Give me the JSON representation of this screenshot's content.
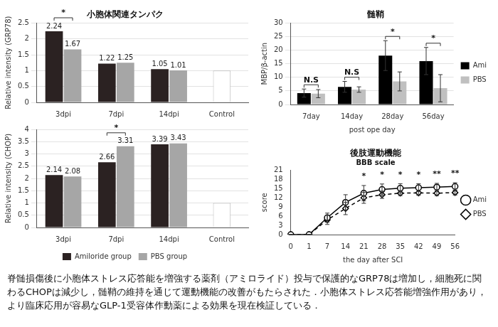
{
  "chart_data": [
    {
      "type": "bar",
      "title": "小胞体関連タンパク",
      "y_label": "Relative intensity (GRP78)",
      "categories": [
        "3dpi",
        "7dpi",
        "14dpi",
        "Control"
      ],
      "series": [
        {
          "name": "Amiloride group",
          "color": "#2b2222",
          "values": [
            2.24,
            1.22,
            1.05,
            null
          ]
        },
        {
          "name": "PBS group",
          "color": "#a6a6a6",
          "values": [
            1.67,
            1.25,
            1.01,
            null
          ]
        }
      ],
      "control": {
        "category": "Control",
        "value": 1,
        "color": "#ffffff"
      },
      "significance": [
        {
          "category": "3dpi",
          "label": "*"
        }
      ],
      "ylim": [
        0,
        2.5
      ],
      "yticks": [
        0,
        0.5,
        1,
        1.5,
        2,
        2.5
      ],
      "grid": true,
      "data_labels": true
    },
    {
      "type": "bar",
      "y_label": "Relative intensity (CHOP)",
      "categories": [
        "3dpi",
        "7dpi",
        "14dpi",
        "Control"
      ],
      "series": [
        {
          "name": "Amiloride group",
          "color": "#2b2222",
          "values": [
            2.14,
            2.66,
            3.39,
            null
          ]
        },
        {
          "name": "PBS group",
          "color": "#a6a6a6",
          "values": [
            2.08,
            3.31,
            3.43,
            null
          ]
        }
      ],
      "control": {
        "category": "Control",
        "value": 1,
        "color": "#ffffff"
      },
      "significance": [
        {
          "category": "7dpi",
          "label": "*"
        }
      ],
      "ylim": [
        0,
        4
      ],
      "yticks": [
        0,
        0.5,
        1,
        1.5,
        2,
        2.5,
        3,
        3.5,
        4
      ],
      "grid": true,
      "data_labels": true,
      "legend": "bottom"
    },
    {
      "type": "bar",
      "title": "髄鞘",
      "y_label": "MBP/β-actin",
      "x_label": "post ope day",
      "categories": [
        "7day",
        "14day",
        "28day",
        "56day"
      ],
      "series": [
        {
          "name": "Ami",
          "color": "#000000",
          "values": [
            4.2,
            6.5,
            18,
            16
          ],
          "errors": [
            1.5,
            2,
            5.5,
            5
          ]
        },
        {
          "name": "PBS",
          "color": "#c0c0c0",
          "values": [
            4,
            5.5,
            8.5,
            6
          ],
          "errors": [
            1.5,
            1,
            3.5,
            5
          ]
        }
      ],
      "significance": [
        {
          "category": "7day",
          "label": "N.S"
        },
        {
          "category": "14day",
          "label": "N.S"
        },
        {
          "category": "28day",
          "label": "*"
        },
        {
          "category": "56day",
          "label": "*"
        }
      ],
      "ylim": [
        0,
        30
      ],
      "yticks": [
        0,
        5,
        10,
        15,
        20,
        25,
        30
      ],
      "grid": true,
      "legend": "right"
    },
    {
      "type": "line",
      "title": "後肢運動機能",
      "subtitle": "BBB scale",
      "y_label": "score",
      "x_label": "the day after SCI",
      "categories": [
        "0",
        "1",
        "7",
        "14",
        "21",
        "28",
        "35",
        "42",
        "49",
        "56"
      ],
      "series": [
        {
          "name": "Ami",
          "color": "#000000",
          "marker": "circle",
          "line_style": "solid",
          "values": [
            0,
            0,
            5.5,
            10.5,
            13.5,
            14.7,
            15.1,
            15.3,
            15.5,
            15.7
          ],
          "errors": [
            0,
            0,
            1.5,
            2.5,
            2.5,
            1.8,
            1.5,
            1.3,
            1.2,
            1.2
          ]
        },
        {
          "name": "PBS",
          "color": "#000000",
          "marker": "diamond",
          "line_style": "dashed",
          "values": [
            0,
            0,
            4.8,
            8.5,
            12,
            13,
            13.5,
            13.6,
            13.5,
            13.7
          ],
          "errors": [
            0,
            0,
            1.5,
            2,
            1.8,
            1.2,
            0.8,
            0.8,
            0.8,
            0.8
          ]
        }
      ],
      "significance": [
        {
          "category": "21",
          "label": "*"
        },
        {
          "category": "28",
          "label": "*"
        },
        {
          "category": "35",
          "label": "*"
        },
        {
          "category": "42",
          "label": "*"
        },
        {
          "category": "49",
          "label": "**"
        },
        {
          "category": "56",
          "label": "**"
        }
      ],
      "ylim": [
        0,
        21
      ],
      "yticks": [
        0,
        3,
        6,
        9,
        12,
        15,
        18,
        21
      ],
      "grid": false,
      "legend": "right"
    }
  ],
  "caption": "脊髄損傷後に小胞体ストレス応答能を増強する薬剤（アミロライド）投与で保護的なGRP78は増加し，細胞死に関わるCHOPは減少し，髄鞘の維持を通じて運動機能の改善がもたらされた．小胞体ストレス応答能増強作用があり，より臨床応用が容易なGLP-1受容体作動薬による効果を現在検証している．"
}
